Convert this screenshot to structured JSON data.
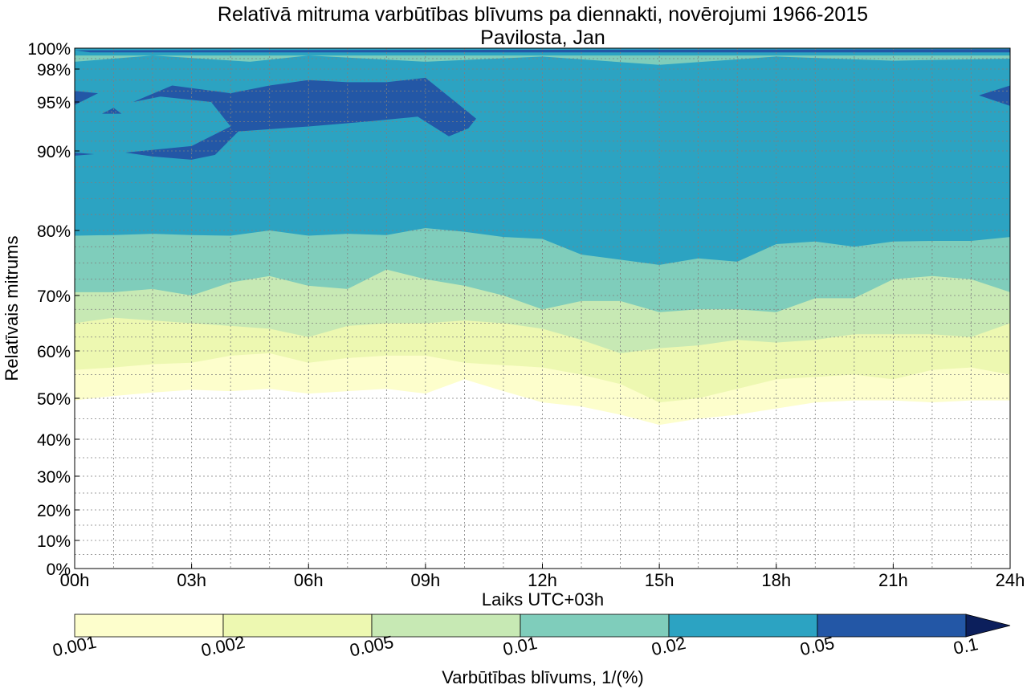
{
  "chart_data": {
    "type": "filled-contour",
    "title": "Relatīvā mitruma varbūtības blīvums pa diennakti, novērojumi 1966-2015",
    "subtitle": "Pavilosta, Jan",
    "xlabel": "Laiks UTC+03h",
    "ylabel": "Relatīvais mitrums",
    "xlim": [
      0,
      24
    ],
    "x_ticks": [
      0,
      3,
      6,
      9,
      12,
      15,
      18,
      21,
      24
    ],
    "x_tick_labels": [
      "00h",
      "03h",
      "06h",
      "09h",
      "12h",
      "15h",
      "18h",
      "21h",
      "24h"
    ],
    "y_scale": "nonlinear (compressed at low humidity)",
    "ylim": [
      0,
      100
    ],
    "y_ticks": [
      0,
      10,
      20,
      30,
      40,
      50,
      60,
      70,
      80,
      90,
      95,
      98,
      100
    ],
    "y_tick_labels": [
      "0%",
      "10%",
      "20%",
      "30%",
      "40%",
      "50%",
      "60%",
      "70%",
      "80%",
      "90%",
      "95%",
      "98%",
      "100%"
    ],
    "grid": true,
    "colorbar": {
      "label": "Varbūtības blīvums, 1/(%)",
      "levels": [
        0.001,
        0.002,
        0.005,
        0.01,
        0.02,
        0.05,
        0.1
      ],
      "level_labels": [
        "0.001",
        "0.002",
        "0.005",
        "0.01",
        "0.02",
        "0.05",
        "0.1"
      ],
      "colors": [
        "#fdfecc",
        "#edf8b1",
        "#c7e9b4",
        "#7fcdbb",
        "#2ca3c2",
        "#2357a6",
        "#0c1f5c"
      ],
      "extend": "max",
      "placement": "bottom"
    },
    "hours": [
      0,
      1,
      2,
      3,
      4,
      5,
      6,
      7,
      8,
      9,
      10,
      11,
      12,
      13,
      14,
      15,
      16,
      17,
      18,
      19,
      20,
      21,
      22,
      23,
      24
    ],
    "contour_boundaries_rh": {
      "level_0.001_lower": [
        49.5,
        50.5,
        51.2,
        51.8,
        51.5,
        52.0,
        51.0,
        51.5,
        52.0,
        51.0,
        54.0,
        51.5,
        49.0,
        48.0,
        46.0,
        43.5,
        45.0,
        46.0,
        47.5,
        49.0,
        49.5,
        49.5,
        49.0,
        49.5,
        49.5
      ],
      "level_0.002_lower": [
        56.0,
        56.5,
        57.2,
        57.5,
        59.0,
        59.5,
        57.5,
        58.5,
        59.0,
        59.0,
        57.5,
        57.0,
        56.5,
        55.0,
        53.0,
        49.0,
        50.0,
        52.0,
        54.0,
        54.5,
        55.0,
        54.0,
        56.0,
        56.5,
        55.0
      ],
      "level_0.005_lower": [
        65.0,
        66.0,
        65.5,
        65.0,
        64.5,
        64.0,
        62.5,
        64.5,
        65.0,
        65.0,
        65.5,
        65.0,
        64.0,
        62.0,
        59.5,
        60.5,
        61.0,
        62.0,
        61.5,
        62.0,
        63.0,
        63.0,
        63.0,
        62.5,
        65.0
      ],
      "level_0.01_lower": [
        70.5,
        70.5,
        71.0,
        70.0,
        72.0,
        73.0,
        71.5,
        71.0,
        74.0,
        72.5,
        71.5,
        70.0,
        67.5,
        69.0,
        69.0,
        67.0,
        67.5,
        67.5,
        67.0,
        69.5,
        69.5,
        72.5,
        73.0,
        72.5,
        70.5
      ],
      "level_0.02_lower": [
        79.2,
        79.3,
        79.5,
        79.3,
        79.2,
        80.0,
        79.2,
        79.5,
        79.3,
        80.3,
        79.8,
        79.0,
        78.7,
        76.3,
        75.5,
        74.7,
        75.7,
        75.2,
        77.9,
        78.3,
        77.5,
        78.3,
        78.4,
        78.4,
        79.0
      ]
    }
  }
}
